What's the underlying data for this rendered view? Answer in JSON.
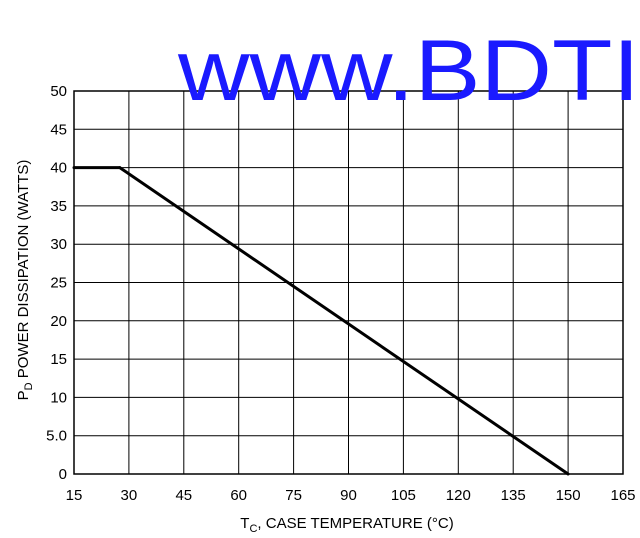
{
  "watermark": {
    "text": "www.BDTI",
    "color": "#1a1aff"
  },
  "chart_data": {
    "type": "line",
    "x": [
      15,
      27.5,
      150
    ],
    "series": [
      {
        "values": [
          40,
          40,
          0
        ]
      }
    ],
    "xlabel": {
      "main": "T",
      "sub": "C",
      "rest": ", CASE TEMPERATURE (°C)"
    },
    "ylabel": {
      "main": "P",
      "sub": "D",
      "rest": " POWER DISSIPATION (WATTS)"
    },
    "xlim": [
      15,
      165
    ],
    "ylim": [
      0,
      50
    ],
    "xticks": [
      15,
      30,
      45,
      60,
      75,
      90,
      105,
      120,
      135,
      150,
      165
    ],
    "xtick_labels": [
      "15",
      "30",
      "45",
      "60",
      "75",
      "90",
      "105",
      "120",
      "135",
      "150",
      "165"
    ],
    "yticks": [
      0,
      5,
      10,
      15,
      20,
      25,
      30,
      35,
      40,
      45,
      50
    ],
    "ytick_labels": [
      "0",
      "5.0",
      "10",
      "15",
      "20",
      "25",
      "30",
      "35",
      "40",
      "45",
      "50"
    ],
    "grid": true,
    "line_color": "#000000"
  }
}
